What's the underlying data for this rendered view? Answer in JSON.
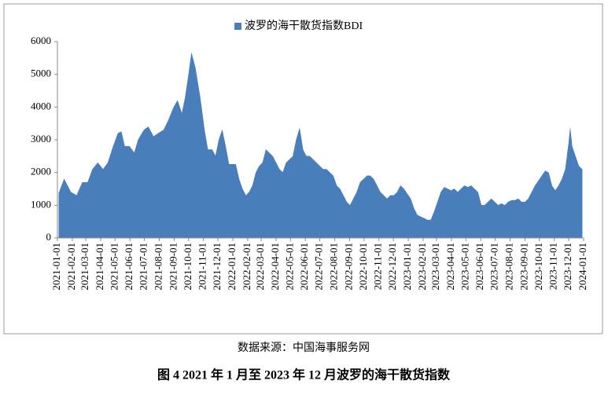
{
  "chart_data": {
    "type": "area",
    "series": [
      {
        "name": "波罗的海干散货指数BDI",
        "color": "#4a7ebb",
        "values": [
          1374,
          1800,
          1400,
          1300,
          1700,
          1700,
          2100,
          2300,
          2100,
          2300,
          2800,
          3200,
          3250,
          2800,
          2800,
          2600,
          3000,
          3300,
          3400,
          3100,
          3200,
          3300,
          3600,
          4000,
          4200,
          3800,
          4300,
          5000,
          5650,
          5200,
          4300,
          3300,
          2700,
          2700,
          2500,
          3000,
          3300,
          2800,
          2250,
          2250,
          1800,
          1500,
          1300,
          1400,
          1600,
          2000,
          2200,
          2300,
          2700,
          2600,
          2500,
          2300,
          2100,
          2000,
          2300,
          2400,
          2500,
          3000,
          3350,
          2700,
          2500,
          2500,
          2400,
          2300,
          2200,
          2100,
          2100,
          2000,
          1900,
          1600,
          1500,
          1300,
          1100,
          1000,
          1200,
          1400,
          1700,
          1800,
          1900,
          1900,
          1800,
          1600,
          1400,
          1300,
          1200,
          1300,
          1300,
          1400,
          1600,
          1500,
          1200,
          900,
          700,
          650,
          600,
          550,
          550,
          800,
          1100,
          1400,
          1550,
          1500,
          1450,
          1500,
          1400,
          1500,
          1600,
          1550,
          1600,
          1500,
          1400,
          1000,
          1000,
          1100,
          1200,
          1100,
          1000,
          1050,
          1000,
          1100,
          1150,
          1150,
          1200,
          1100,
          1100,
          1200,
          1400,
          1600,
          1750,
          1900,
          2050,
          2000,
          1600,
          1450,
          1600,
          1800,
          2100,
          2900,
          3350,
          2800,
          2500,
          2200,
          2100
        ]
      }
    ],
    "x": [
      "2021-01-04",
      "2021-01-15",
      "2021-01-29",
      "2021-02-10",
      "2021-02-22",
      "2021-03-05",
      "2021-03-15",
      "2021-03-26",
      "2021-04-06",
      "2021-04-16",
      "2021-04-27",
      "2021-05-07",
      "2021-05-14",
      "2021-05-21",
      "2021-05-31",
      "2021-06-10",
      "2021-06-18",
      "2021-06-30",
      "2021-07-09",
      "2021-07-20",
      "2021-07-30",
      "2021-08-10",
      "2021-08-20",
      "2021-08-31",
      "2021-09-08",
      "2021-09-17",
      "2021-09-24",
      "2021-10-01",
      "2021-10-07",
      "2021-10-15",
      "2021-10-25",
      "2021-11-03",
      "2021-11-10",
      "2021-11-19",
      "2021-11-26",
      "2021-12-03",
      "2021-12-10",
      "2021-12-17",
      "2021-12-24",
      "2022-01-07",
      "2022-01-14",
      "2022-01-21",
      "2022-01-28",
      "2022-02-04",
      "2022-02-11",
      "2022-02-18",
      "2022-02-25",
      "2022-03-04",
      "2022-03-11",
      "2022-03-18",
      "2022-03-25",
      "2022-04-01",
      "2022-04-08",
      "2022-04-15",
      "2022-04-22",
      "2022-04-29",
      "2022-05-06",
      "2022-05-13",
      "2022-05-20",
      "2022-05-27",
      "2022-06-03",
      "2022-06-10",
      "2022-06-17",
      "2022-06-24",
      "2022-07-01",
      "2022-07-08",
      "2022-07-15",
      "2022-07-22",
      "2022-07-29",
      "2022-08-05",
      "2022-08-12",
      "2022-08-19",
      "2022-08-26",
      "2022-09-02",
      "2022-09-09",
      "2022-09-16",
      "2022-09-23",
      "2022-09-30",
      "2022-10-07",
      "2022-10-14",
      "2022-10-21",
      "2022-10-28",
      "2022-11-04",
      "2022-11-11",
      "2022-11-18",
      "2022-11-25",
      "2022-12-02",
      "2022-12-09",
      "2022-12-16",
      "2022-12-23",
      "2023-01-06",
      "2023-01-13",
      "2023-01-20",
      "2023-01-27",
      "2023-02-03",
      "2023-02-10",
      "2023-02-17",
      "2023-02-24",
      "2023-03-03",
      "2023-03-10",
      "2023-03-17",
      "2023-03-24",
      "2023-03-31",
      "2023-04-07",
      "2023-04-14",
      "2023-04-21",
      "2023-04-28",
      "2023-05-05",
      "2023-05-12",
      "2023-05-19",
      "2023-05-26",
      "2023-06-02",
      "2023-06-09",
      "2023-06-16",
      "2023-06-23",
      "2023-06-30",
      "2023-07-07",
      "2023-07-14",
      "2023-07-21",
      "2023-07-28",
      "2023-08-04",
      "2023-08-11",
      "2023-08-18",
      "2023-08-25",
      "2023-09-01",
      "2023-09-08",
      "2023-09-15",
      "2023-09-22",
      "2023-09-29",
      "2023-10-06",
      "2023-10-13",
      "2023-10-20",
      "2023-10-27",
      "2023-11-03",
      "2023-11-10",
      "2023-11-17",
      "2023-11-24",
      "2023-12-01",
      "2023-12-04",
      "2023-12-08",
      "2023-12-15",
      "2023-12-22",
      "2023-12-29"
    ],
    "xlim": [
      "2021-01-01",
      "2024-01-01"
    ],
    "xticks": [
      "2021-01-01",
      "2021-02-01",
      "2021-03-01",
      "2021-04-01",
      "2021-05-01",
      "2021-06-01",
      "2021-07-01",
      "2021-08-01",
      "2021-09-01",
      "2021-10-01",
      "2021-11-01",
      "2021-12-01",
      "2022-01-01",
      "2022-02-01",
      "2022-03-01",
      "2022-04-01",
      "2022-05-01",
      "2022-06-01",
      "2022-07-01",
      "2022-08-01",
      "2022-09-01",
      "2022-10-01",
      "2022-11-01",
      "2022-12-01",
      "2023-01-01",
      "2023-02-01",
      "2023-03-01",
      "2023-04-01",
      "2023-05-01",
      "2023-06-01",
      "2023-07-01",
      "2023-08-01",
      "2023-09-01",
      "2023-10-01",
      "2023-11-01",
      "2023-12-01",
      "2024-01-01"
    ],
    "ylim": [
      0,
      6000
    ],
    "yticks": [
      0,
      1000,
      2000,
      3000,
      4000,
      5000,
      6000
    ],
    "legend": "top"
  },
  "source": "数据来源：中国海事服务网",
  "caption": "图 4 2021 年 1 月至 2023 年 12 月波罗的海干散货指数"
}
